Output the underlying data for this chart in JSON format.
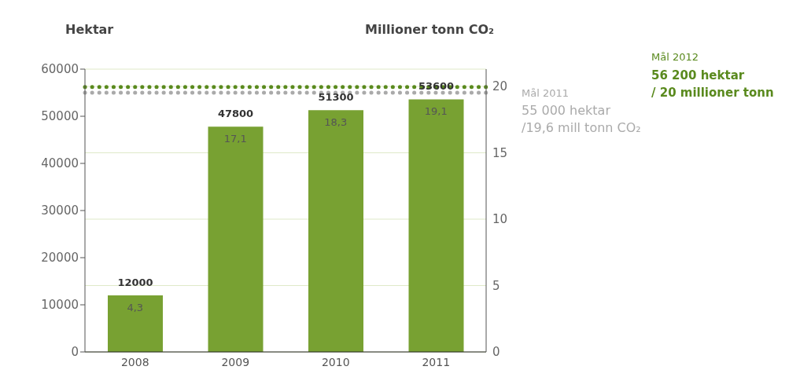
{
  "chart_data": {
    "type": "bar",
    "categories": [
      "2008",
      "2009",
      "2010",
      "2011"
    ],
    "series": [
      {
        "color": "#78a132",
        "values": [
          12000,
          47800,
          51300,
          53600
        ]
      }
    ],
    "ylabel": "Hektar",
    "y2label": "Millioner tonn CO₂",
    "ylim": [
      0,
      60000
    ],
    "yticks": [
      0,
      10000,
      20000,
      30000,
      40000,
      50000,
      60000
    ],
    "y2lim": [
      0,
      21.3
    ],
    "y2ticks": [
      0,
      5,
      10,
      15,
      20
    ],
    "grid": true,
    "data_labels": true,
    "legend": false,
    "ref_lines": [
      {
        "axis": "y",
        "value": 56200,
        "label": "Mål 2012",
        "color": "#5a8a1e",
        "line_style": "dotted"
      },
      {
        "axis": "y",
        "value": 55000,
        "label": "Mål 2011",
        "color": "#aaaaaa",
        "line_style": "dotted"
      }
    ],
    "annotations": [
      {
        "text": "4,3",
        "x": "2008",
        "y": 12000
      },
      {
        "text": "17,1",
        "x": "2009",
        "y": 47800
      },
      {
        "text": "18,3",
        "x": "2010",
        "y": 51300
      },
      {
        "text": "19,1",
        "x": "2011",
        "y": 53600
      },
      "56 200 hektar\n/ 20 millioner tonn",
      "55 000 hektar\n/19,6 mill tonn CO₂"
    ]
  }
}
